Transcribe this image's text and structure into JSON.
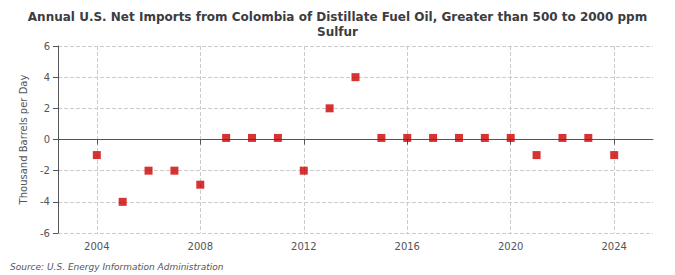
{
  "chart_data": {
    "type": "scatter",
    "title": "Annual U.S. Net Imports from Colombia of Distillate Fuel Oil, Greater than 500 to 2000 ppm\nSulfur",
    "ylabel": "Thousand Barrels per Day",
    "source": "Source: U.S. Energy Information Administration",
    "x": [
      2004,
      2005,
      2006,
      2007,
      2008,
      2009,
      2010,
      2011,
      2012,
      2013,
      2014,
      2015,
      2016,
      2017,
      2018,
      2019,
      2020,
      2021,
      2022,
      2023,
      2024
    ],
    "values": [
      -1.0,
      -4.0,
      -2.0,
      -2.0,
      -2.9,
      0.1,
      0.1,
      0.1,
      -2.0,
      2.0,
      4.0,
      0.1,
      0.1,
      0.1,
      0.1,
      0.1,
      0.1,
      -1.0,
      0.1,
      0.1,
      -1.0
    ],
    "color": "#cc0000",
    "marker": "square",
    "xlim": [
      2002.5,
      2025.5
    ],
    "xticks": [
      2004,
      2008,
      2012,
      2016,
      2020,
      2024
    ],
    "ylim": [
      -6,
      6
    ],
    "yticks": [
      -6,
      -4,
      -2,
      0,
      2,
      4,
      6
    ],
    "grid": true
  }
}
